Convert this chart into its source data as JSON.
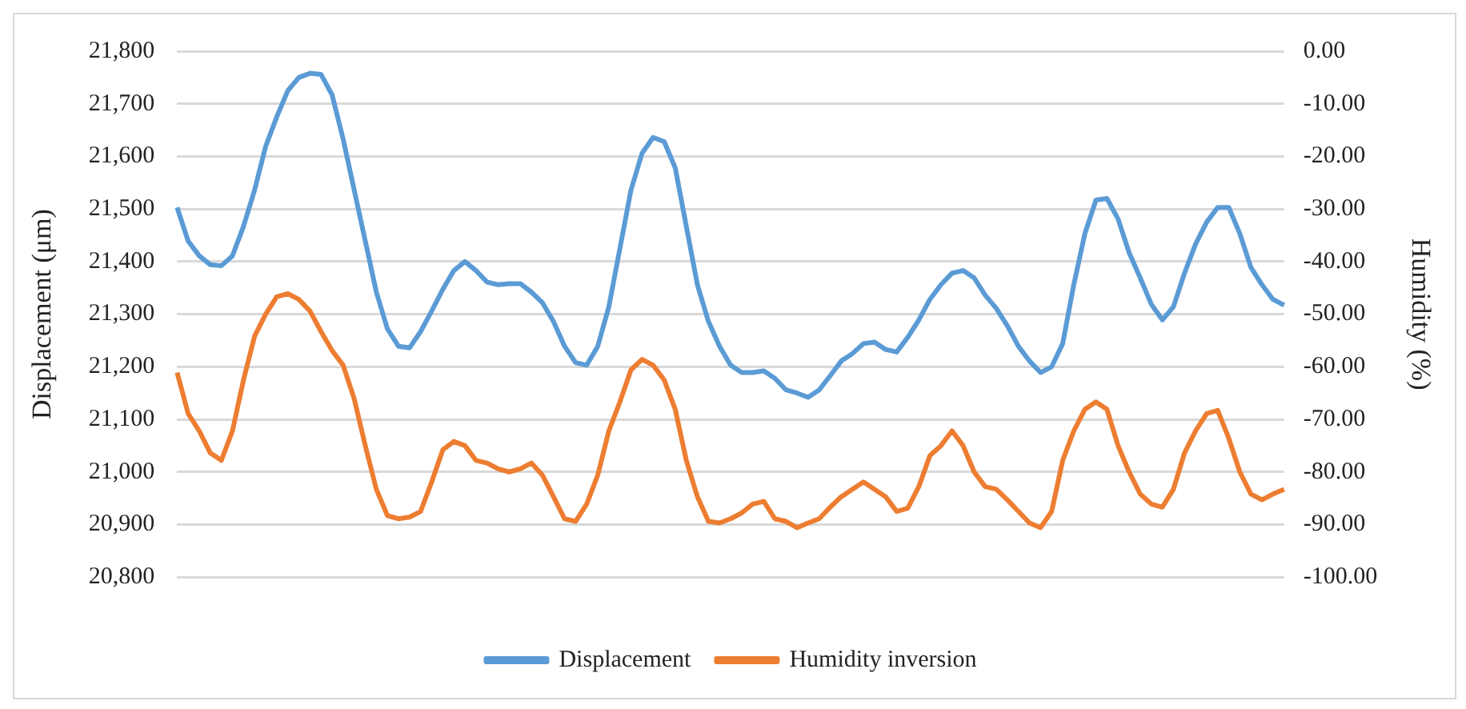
{
  "chart_data": {
    "type": "line",
    "xlabel": null,
    "ylabel": "Displacement (μm)",
    "y2label": "Humidity (%)",
    "categories": [
      null,
      null,
      null,
      null,
      null,
      null,
      null,
      null,
      null,
      null,
      null,
      null,
      null,
      null,
      null,
      null,
      null,
      null,
      null,
      null,
      null,
      null,
      null,
      null,
      null,
      null,
      null,
      null,
      null,
      null,
      null,
      null,
      null,
      null,
      null,
      null,
      null,
      null,
      null,
      null,
      null,
      null,
      null,
      null,
      null,
      null,
      null,
      null,
      null,
      null,
      null,
      null,
      null,
      null,
      null,
      null,
      null,
      null,
      null,
      null,
      null,
      null,
      null,
      null,
      null,
      null,
      null,
      null,
      null,
      null,
      null,
      null,
      null,
      null,
      null,
      null,
      null,
      null,
      null,
      null,
      null,
      null,
      null,
      null,
      null,
      null,
      null,
      null,
      null,
      null,
      null,
      null,
      null,
      null,
      null,
      null,
      null,
      null,
      null,
      null,
      null
    ],
    "series": [
      {
        "name": "Displacement",
        "color": "#5b9bd5",
        "values": [
          21503,
          21439,
          21411,
          21394,
          21392,
          21411,
          21467,
          21536,
          21619,
          21675,
          21725,
          21750,
          21758,
          21756,
          21717,
          21633,
          21536,
          21439,
          21342,
          21272,
          21239,
          21236,
          21267,
          21306,
          21347,
          21383,
          21400,
          21383,
          21361,
          21356,
          21358,
          21358,
          21342,
          21322,
          21286,
          21239,
          21208,
          21203,
          21239,
          21314,
          21425,
          21536,
          21606,
          21636,
          21628,
          21578,
          21467,
          21356,
          21286,
          21239,
          21203,
          21189,
          21189,
          21192,
          21178,
          21156,
          21150,
          21142,
          21156,
          21183,
          21211,
          21225,
          21244,
          21247,
          21233,
          21228,
          21256,
          21289,
          21328,
          21356,
          21378,
          21383,
          21369,
          21336,
          21311,
          21278,
          21239,
          21211,
          21189,
          21200,
          21244,
          21356,
          21453,
          21517,
          21520,
          21481,
          21417,
          21369,
          21319,
          21289,
          21314,
          21378,
          21433,
          21475,
          21503,
          21503,
          21453,
          21389,
          21356,
          21328,
          21317
        ]
      },
      {
        "name": "Humidity inversion",
        "color": "#ed7d31",
        "axis": "y2",
        "values": [
          -61.1,
          -68.9,
          -72.2,
          -76.4,
          -77.8,
          -72.2,
          -62.5,
          -54.2,
          -50.0,
          -46.7,
          -46.1,
          -47.2,
          -49.4,
          -53.3,
          -56.9,
          -59.7,
          -66.1,
          -75.0,
          -83.3,
          -88.3,
          -88.9,
          -88.6,
          -87.5,
          -81.9,
          -75.8,
          -74.2,
          -75.0,
          -77.8,
          -78.3,
          -79.4,
          -80.0,
          -79.4,
          -78.3,
          -80.6,
          -84.7,
          -88.9,
          -89.4,
          -86.1,
          -80.6,
          -72.2,
          -66.7,
          -60.6,
          -58.6,
          -59.7,
          -62.5,
          -68.1,
          -77.8,
          -84.7,
          -89.4,
          -89.7,
          -88.9,
          -87.8,
          -86.1,
          -85.6,
          -88.9,
          -89.4,
          -90.6,
          -89.7,
          -88.9,
          -86.7,
          -84.7,
          -83.3,
          -81.9,
          -83.3,
          -84.7,
          -87.5,
          -86.9,
          -82.8,
          -76.9,
          -75.0,
          -72.2,
          -75.0,
          -80.0,
          -82.8,
          -83.3,
          -85.3,
          -87.5,
          -89.7,
          -90.6,
          -87.5,
          -77.8,
          -72.2,
          -68.1,
          -66.7,
          -68.1,
          -75.0,
          -80.0,
          -84.2,
          -86.1,
          -86.7,
          -83.3,
          -76.4,
          -72.2,
          -68.9,
          -68.3,
          -73.6,
          -80.0,
          -84.2,
          -85.3,
          -84.2,
          -83.3
        ]
      }
    ],
    "ylim": [
      20800,
      21800
    ],
    "yticks": [
      {
        "value": 20800,
        "label": "20,800"
      },
      {
        "value": 20900,
        "label": "20,900"
      },
      {
        "value": 21000,
        "label": "21,000"
      },
      {
        "value": 21100,
        "label": "21,100"
      },
      {
        "value": 21200,
        "label": "21,200"
      },
      {
        "value": 21300,
        "label": "21,300"
      },
      {
        "value": 21400,
        "label": "21,400"
      },
      {
        "value": 21500,
        "label": "21,500"
      },
      {
        "value": 21600,
        "label": "21,600"
      },
      {
        "value": 21700,
        "label": "21,700"
      },
      {
        "value": 21800,
        "label": "21,800"
      }
    ],
    "y2lim": [
      -100,
      0
    ],
    "y2ticks": [
      {
        "value": -100,
        "label": "-100.00"
      },
      {
        "value": -90,
        "label": "-90.00"
      },
      {
        "value": -80,
        "label": "-80.00"
      },
      {
        "value": -70,
        "label": "-70.00"
      },
      {
        "value": -60,
        "label": "-60.00"
      },
      {
        "value": -50,
        "label": "-50.00"
      },
      {
        "value": -40,
        "label": "-40.00"
      },
      {
        "value": -30,
        "label": "-30.00"
      },
      {
        "value": -20,
        "label": "-20.00"
      },
      {
        "value": -10,
        "label": "-10.00"
      },
      {
        "value": 0,
        "label": "0.00"
      }
    ],
    "grid": "y",
    "legend": "bottom",
    "marker": "none",
    "line_style": "solid"
  }
}
